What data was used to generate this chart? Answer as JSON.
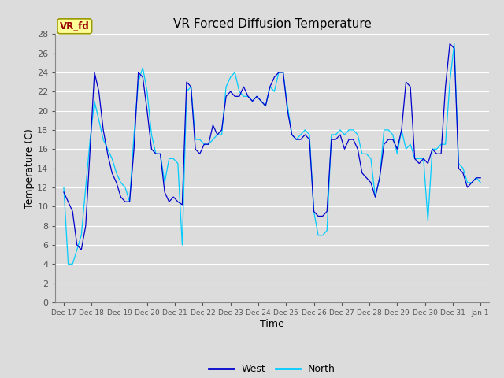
{
  "title": "VR Forced Diffusion Temperature",
  "xlabel": "Time",
  "ylabel": "Temperature (C)",
  "ylim": [
    0,
    28
  ],
  "yticks": [
    0,
    2,
    4,
    6,
    8,
    10,
    12,
    14,
    16,
    18,
    20,
    22,
    24,
    26,
    28
  ],
  "color_west": "#0000CD",
  "color_north": "#00CCFF",
  "fig_bg_color": "#DCDCDC",
  "plot_bg": "#DCDCDC",
  "label_box_color": "#FFFF99",
  "label_box_edge": "#999900",
  "label_text": "VR_fd",
  "label_text_color": "#990000",
  "legend_west": "West",
  "legend_north": "North",
  "x_tick_labels": [
    "Dec 17",
    "Dec 18",
    "Dec 19",
    "Dec 20",
    "Dec 21",
    "Dec 22",
    "Dec 23",
    "Dec 24",
    "Dec 25",
    "Dec 26",
    "Dec 27",
    "Dec 28",
    "Dec 29",
    "Dec 30",
    "Dec 31",
    "Jan 1"
  ],
  "west_data": [
    11.5,
    10.5,
    9.5,
    6.0,
    5.5,
    8.0,
    16.0,
    24.0,
    22.0,
    18.0,
    15.5,
    13.5,
    12.5,
    11.0,
    10.5,
    10.5,
    16.0,
    24.0,
    23.5,
    20.0,
    16.0,
    15.5,
    15.5,
    11.5,
    10.5,
    11.0,
    10.5,
    10.2,
    23.0,
    22.5,
    16.0,
    15.5,
    16.5,
    16.5,
    18.5,
    17.5,
    18.0,
    21.5,
    22.0,
    21.5,
    21.5,
    22.5,
    21.5,
    21.0,
    21.5,
    21.0,
    20.5,
    22.5,
    23.5,
    24.0,
    24.0,
    20.0,
    17.5,
    17.0,
    17.0,
    17.5,
    17.0,
    9.5,
    9.0,
    9.0,
    9.5,
    17.0,
    17.0,
    17.5,
    16.0,
    17.0,
    17.0,
    16.0,
    13.5,
    13.0,
    12.5,
    11.0,
    13.0,
    16.5,
    17.0,
    17.0,
    16.0,
    18.0,
    23.0,
    22.5,
    15.0,
    14.5,
    15.0,
    14.5,
    16.0,
    15.5,
    15.5,
    22.5,
    27.0,
    26.5,
    14.0,
    13.5,
    12.0,
    12.5,
    13.0,
    13.0
  ],
  "north_data": [
    12.0,
    4.0,
    4.0,
    5.5,
    7.0,
    12.0,
    17.0,
    21.0,
    19.0,
    17.0,
    16.0,
    15.0,
    13.5,
    12.5,
    12.0,
    10.5,
    17.5,
    23.0,
    24.5,
    22.0,
    17.5,
    15.5,
    15.5,
    12.5,
    15.0,
    15.0,
    14.5,
    6.0,
    22.0,
    22.5,
    17.0,
    17.0,
    16.5,
    16.5,
    17.0,
    17.5,
    17.5,
    22.5,
    23.5,
    24.0,
    22.0,
    21.5,
    21.5,
    21.0,
    21.5,
    21.0,
    20.5,
    22.5,
    22.0,
    24.0,
    24.0,
    20.5,
    17.5,
    17.0,
    17.5,
    18.0,
    17.5,
    9.5,
    7.0,
    7.0,
    7.5,
    17.5,
    17.5,
    18.0,
    17.5,
    18.0,
    18.0,
    17.5,
    15.5,
    15.5,
    15.0,
    11.0,
    13.0,
    18.0,
    18.0,
    17.5,
    15.5,
    18.0,
    16.0,
    16.5,
    15.0,
    15.0,
    15.0,
    8.5,
    16.0,
    16.0,
    16.5,
    16.5,
    23.0,
    27.0,
    14.5,
    14.0,
    12.5,
    12.5,
    13.0,
    12.5
  ]
}
